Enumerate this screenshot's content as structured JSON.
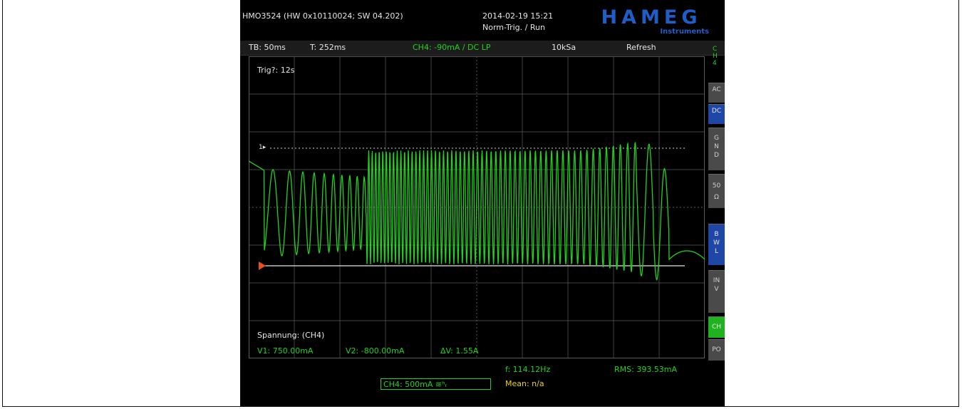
{
  "header": {
    "device": "HMO3524 (HW 0x10110024; SW 04.202)",
    "datetime": "2014-02-19 15:21",
    "mode": "Norm-Trig. / Run",
    "brand": "HAMEG",
    "brand_sub": "Instruments"
  },
  "topbar": {
    "timebase": "TB: 50ms",
    "trigger_time": "T: 252ms",
    "channel_setting": "CH4: -90mA / DC LP",
    "sample_rate": "10kSa",
    "acq_mode": "Refresh"
  },
  "screen": {
    "trig_timer": "Trig?: 12s",
    "ref_marker": "1▸",
    "measure_title": "Spannung: (CH4)",
    "v1": "V1: 750.00mA",
    "v2": "V2: -800.00mA",
    "dv": "ΔV: 1.55A"
  },
  "side_menu": {
    "channel": "CH4",
    "items": [
      "AC",
      "DC",
      "GND",
      "50Ω",
      "BWL",
      "INV",
      "CH",
      "PO"
    ]
  },
  "bottom": {
    "channel_scale": "CH4: 500mA ≋ʰᵣ",
    "frequency": "f: 114.12Hz",
    "rms": "RMS: 393.53mA",
    "mean": "Mean: n/a"
  },
  "colors": {
    "trace": "#22d21e",
    "grid": "#5a5a5a",
    "trigger_marker": "#e8511a",
    "accent_blue": "#1f5ec9"
  }
}
